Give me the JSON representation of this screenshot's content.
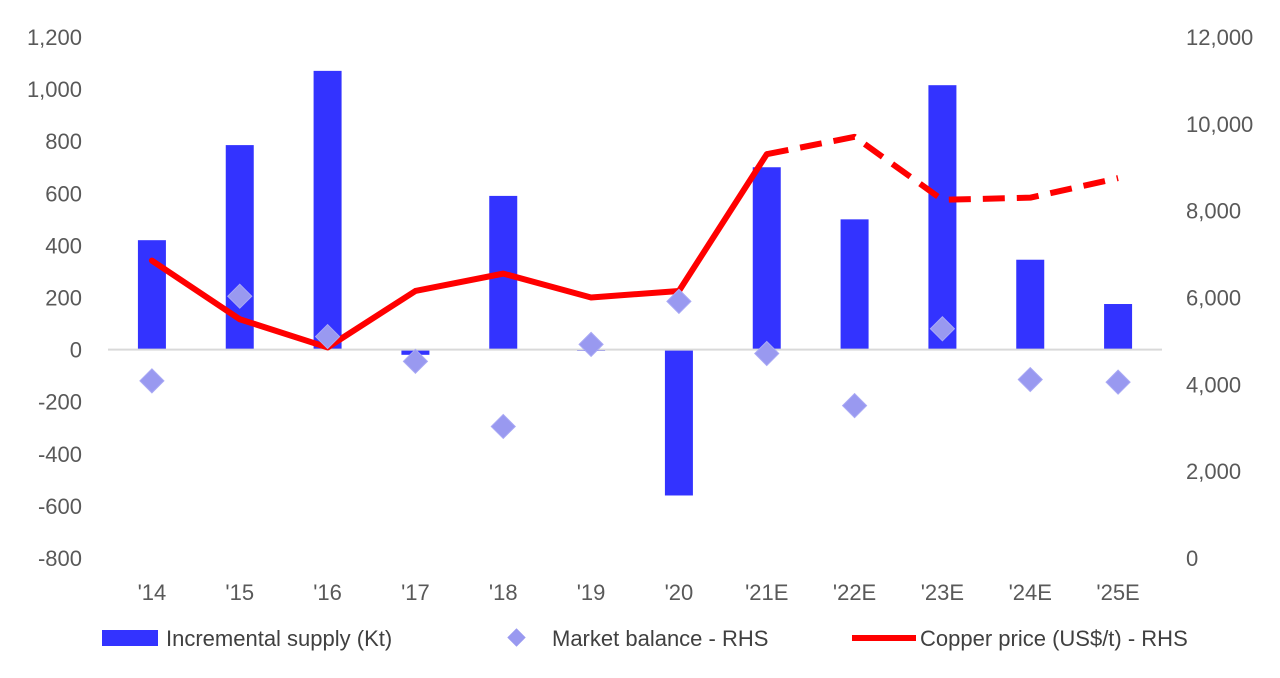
{
  "chart_data": {
    "type": "combo",
    "title": "",
    "categories": [
      "'14",
      "'15",
      "'16",
      "'17",
      "'18",
      "'19",
      "'20",
      "'21E",
      "'22E",
      "'23E",
      "'24E",
      "'25E"
    ],
    "y_left": {
      "min": -800,
      "max": 1200,
      "step": 200,
      "tick_labels": [
        "-800",
        "-600",
        "-400",
        "-200",
        "0",
        "200",
        "400",
        "600",
        "800",
        "1,000",
        "1,200"
      ]
    },
    "y_right": {
      "min": 0,
      "max": 12000,
      "step": 2000,
      "tick_labels": [
        "0",
        "2,000",
        "4,000",
        "6,000",
        "8,000",
        "10,000",
        "12,000"
      ]
    },
    "series": [
      {
        "name": "Incremental supply (Kt)",
        "kind": "bar",
        "axis": "left",
        "color": "#3333ff",
        "values": [
          420,
          785,
          1070,
          -20,
          590,
          -5,
          -560,
          700,
          500,
          1015,
          345,
          175
        ]
      },
      {
        "name": "Market balance - RHS",
        "kind": "scatter",
        "axis": "left",
        "color": "#9999f0",
        "values": [
          -120,
          205,
          50,
          -45,
          -295,
          20,
          185,
          -15,
          -215,
          80,
          -115,
          -125
        ]
      },
      {
        "name": "Copper price (US$/t) - RHS",
        "kind": "line",
        "axis": "right",
        "color": "#ff0000",
        "values": [
          6850,
          5500,
          4850,
          6150,
          6550,
          6000,
          6150,
          9300,
          9700,
          8250,
          8300,
          8750
        ],
        "dashed_from_index": 7
      }
    ],
    "legend": {
      "position": "bottom",
      "items": [
        "Incremental supply (Kt)",
        "Market balance - RHS",
        "Copper price (US$/t) - RHS"
      ]
    }
  }
}
